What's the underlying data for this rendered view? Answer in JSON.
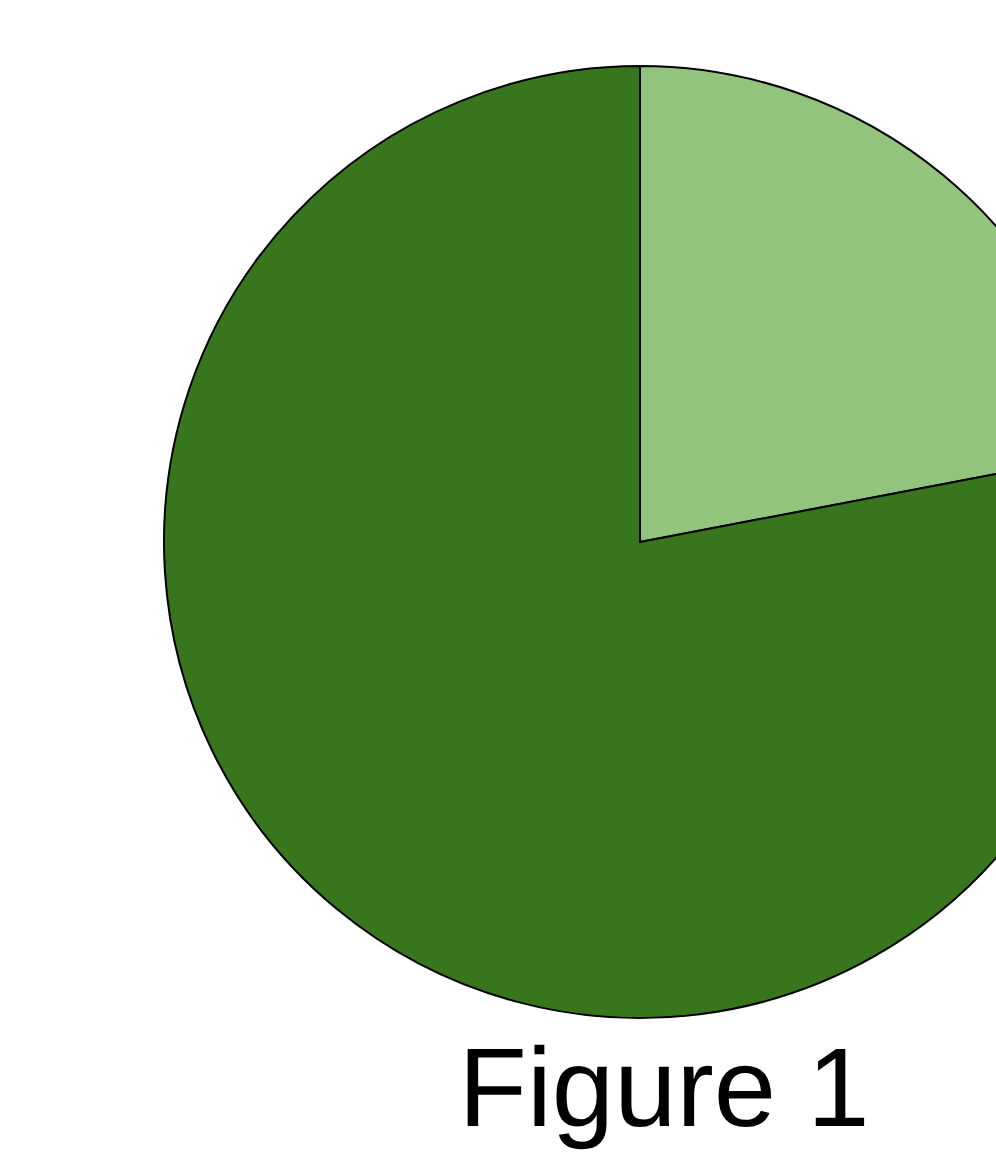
{
  "chart_data": {
    "type": "pie",
    "categories": [
      null,
      null
    ],
    "values": [
      22,
      78
    ],
    "colors": [
      "#93c47d",
      "#38761d"
    ],
    "annotations": [
      "Figure 1"
    ]
  }
}
